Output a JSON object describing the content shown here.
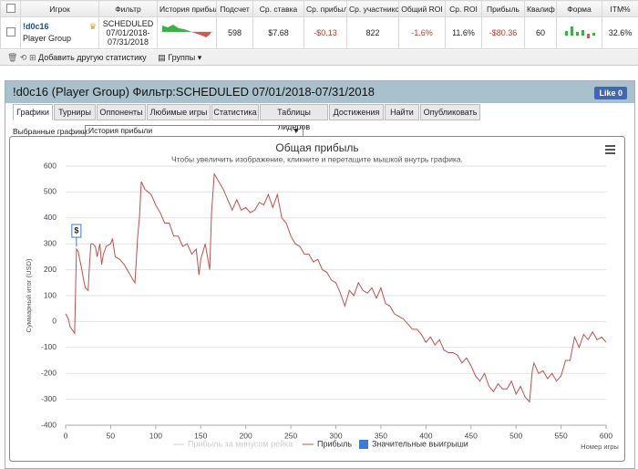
{
  "table": {
    "headers": [
      "Игрок",
      "Фильтр",
      "История прибыли",
      "Подсчет",
      "Ср. ставка",
      "Ср. прибыль",
      "Ср. участников",
      "Общий ROI",
      "Ср. ROI",
      "Прибыль",
      "Квалиф",
      "Форма",
      "ITM%"
    ],
    "row": {
      "player": "!d0c16",
      "group": "Player Group",
      "filter": [
        "SCHEDULED",
        "07/01/2018-",
        "07/31/2018"
      ],
      "count": "598",
      "avg_stake": "$7.68",
      "avg_profit": "-$0.13",
      "avg_entrants": "822",
      "total_roi": "-1.6%",
      "avg_roi": "11.6%",
      "profit": "-$80.36",
      "qualif": "60",
      "itm": "32.6%"
    }
  },
  "toolbar": {
    "add": "Добавить другую статистику",
    "groups": "Группы"
  },
  "panel": {
    "title": "!d0c16 (Player Group) Фильтр:SCHEDULED 07/01/2018-07/31/2018",
    "like": "Like 0",
    "tabs": [
      "Графики",
      "Турниры",
      "Оппоненты",
      "Любимые игры",
      "Статистика",
      "Таблицы лидеров",
      "Достижения",
      "Найти",
      "Опубликовать"
    ],
    "select_label": "Выбранные графики:",
    "select_value": "История прибыли"
  },
  "chart_data": {
    "type": "line",
    "title": "Общая прибыль",
    "subtitle": "Чтобы увеличить изображение, кликните и перетащите мышкой внутрь графика.",
    "ylabel": "Суммарный итог (USD)",
    "xlabel": "Номер игры",
    "xlim": [
      0,
      600
    ],
    "ylim": [
      -400,
      600
    ],
    "xticks": [
      0,
      50,
      100,
      150,
      200,
      250,
      300,
      350,
      400,
      450,
      500,
      550,
      600
    ],
    "yticks": [
      -400,
      -300,
      -200,
      -100,
      0,
      100,
      200,
      300,
      400,
      500,
      600
    ],
    "grid": true,
    "hidden_legend": {
      "name": "Прибыль за минусом рейка",
      "color": "#cccccc"
    },
    "series": [
      {
        "name": "Прибыль",
        "color": "#c0504d",
        "x": [
          0,
          3,
          5,
          10,
          12,
          14,
          18,
          20,
          22,
          25,
          26,
          28,
          30,
          33,
          35,
          38,
          40,
          42,
          45,
          50,
          52,
          55,
          60,
          65,
          70,
          75,
          77,
          80,
          82,
          84,
          88,
          95,
          100,
          105,
          110,
          115,
          120,
          125,
          130,
          135,
          140,
          145,
          148,
          150,
          155,
          160,
          162,
          165,
          170,
          175,
          180,
          185,
          190,
          195,
          200,
          205,
          210,
          215,
          220,
          225,
          230,
          235,
          240,
          245,
          250,
          255,
          260,
          265,
          270,
          275,
          280,
          285,
          290,
          295,
          300,
          305,
          310,
          315,
          320,
          325,
          330,
          335,
          340,
          345,
          350,
          355,
          360,
          365,
          370,
          375,
          380,
          385,
          390,
          395,
          400,
          405,
          410,
          415,
          420,
          425,
          430,
          435,
          440,
          445,
          450,
          455,
          460,
          465,
          470,
          475,
          480,
          485,
          490,
          495,
          500,
          505,
          510,
          515,
          518,
          520,
          525,
          530,
          535,
          540,
          545,
          550,
          555,
          560,
          565,
          570,
          575,
          580,
          585,
          590,
          595,
          600
        ],
        "values": [
          30,
          10,
          -20,
          -45,
          280,
          270,
          200,
          160,
          130,
          120,
          190,
          300,
          300,
          290,
          250,
          300,
          220,
          260,
          290,
          300,
          320,
          250,
          240,
          220,
          190,
          160,
          150,
          330,
          400,
          540,
          510,
          490,
          450,
          420,
          380,
          380,
          330,
          330,
          290,
          300,
          260,
          280,
          180,
          240,
          300,
          200,
          420,
          570,
          540,
          510,
          470,
          430,
          470,
          430,
          440,
          420,
          430,
          460,
          450,
          490,
          440,
          490,
          400,
          380,
          330,
          300,
          290,
          260,
          260,
          230,
          240,
          200,
          190,
          160,
          150,
          110,
          60,
          120,
          100,
          150,
          120,
          110,
          130,
          90,
          130,
          70,
          60,
          30,
          20,
          10,
          -10,
          -30,
          -30,
          -50,
          -80,
          -60,
          -90,
          -70,
          -110,
          -120,
          -120,
          -130,
          -160,
          -140,
          -170,
          -210,
          -230,
          -200,
          -250,
          -270,
          -240,
          -260,
          -260,
          -230,
          -280,
          -250,
          -290,
          -310,
          -190,
          -160,
          -200,
          -190,
          -220,
          -200,
          -230,
          -210,
          -150,
          -150,
          -60,
          -100,
          -50,
          -70,
          -40,
          -70,
          -60,
          -80
        ]
      }
    ],
    "flags": {
      "name": "Значительные выигрыши",
      "color": "#3a7bd5",
      "label": "$",
      "x": [
        12
      ],
      "values": [
        290
      ]
    }
  }
}
